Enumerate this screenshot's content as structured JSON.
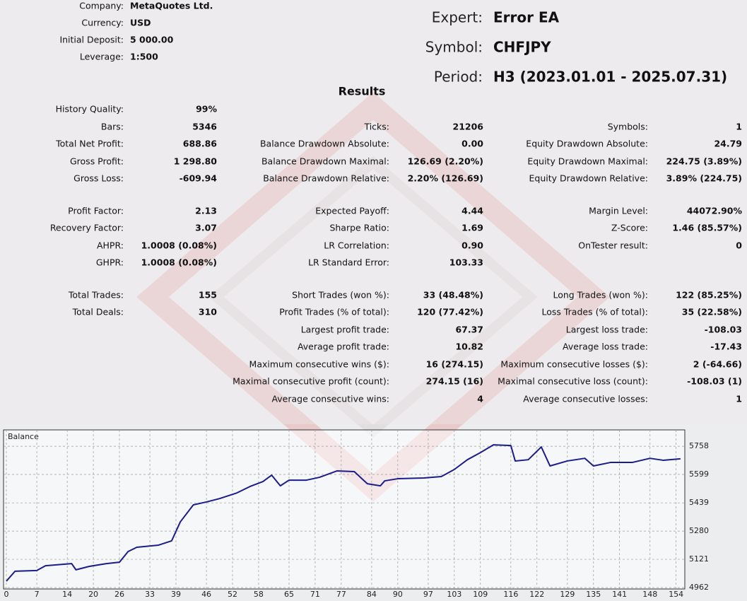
{
  "header": {
    "info": [
      {
        "label": "Company:",
        "value": "MetaQuotes Ltd."
      },
      {
        "label": "Currency:",
        "value": "USD"
      },
      {
        "label": "Initial Deposit:",
        "value": "5 000.00"
      },
      {
        "label": "Leverage:",
        "value": "1:500"
      }
    ],
    "expert": [
      {
        "label": "Expert:",
        "value": "Error EA"
      },
      {
        "label": "Symbol:",
        "value": "CHFJPY"
      },
      {
        "label": "Period:",
        "value": "H3 (2023.01.01 - 2025.07.31)"
      }
    ]
  },
  "results": {
    "title": "Results",
    "columns": [
      [
        {
          "label": "History Quality:",
          "value": "99%"
        },
        {
          "label": "Bars:",
          "value": "5346"
        },
        {
          "label": "Total Net Profit:",
          "value": "688.86"
        },
        {
          "label": "Gross Profit:",
          "value": "1 298.80"
        },
        {
          "label": "Gross Loss:",
          "value": "-609.94"
        },
        {
          "label": "Profit Factor:",
          "value": "2.13"
        },
        {
          "label": "Recovery Factor:",
          "value": "3.07"
        },
        {
          "label": "AHPR:",
          "value": "1.0008 (0.08%)"
        },
        {
          "label": "GHPR:",
          "value": "1.0008 (0.08%)"
        },
        {
          "label": "Total Trades:",
          "value": "155"
        },
        {
          "label": "Total Deals:",
          "value": "310"
        }
      ],
      [
        null,
        {
          "label": "Ticks:",
          "value": "21206"
        },
        {
          "label": "Balance Drawdown Absolute:",
          "value": "0.00"
        },
        {
          "label": "Balance Drawdown Maximal:",
          "value": "126.69 (2.20%)"
        },
        {
          "label": "Balance Drawdown Relative:",
          "value": "2.20% (126.69)"
        },
        {
          "label": "Expected Payoff:",
          "value": "4.44"
        },
        {
          "label": "Sharpe Ratio:",
          "value": "1.69"
        },
        {
          "label": "LR Correlation:",
          "value": "0.90"
        },
        {
          "label": "LR Standard Error:",
          "value": "103.33"
        },
        {
          "label": "Short Trades (won %):",
          "value": "33 (48.48%)"
        },
        {
          "label": "Profit Trades (% of total):",
          "value": "120 (77.42%)"
        },
        {
          "label": "Largest profit trade:",
          "value": "67.37"
        },
        {
          "label": "Average profit trade:",
          "value": "10.82"
        },
        {
          "label": "Maximum consecutive wins ($):",
          "value": "16 (274.15)"
        },
        {
          "label": "Maximal consecutive profit (count):",
          "value": "274.15 (16)"
        },
        {
          "label": "Average consecutive wins:",
          "value": "4"
        }
      ],
      [
        null,
        {
          "label": "Symbols:",
          "value": "1"
        },
        {
          "label": "Equity Drawdown Absolute:",
          "value": "24.79"
        },
        {
          "label": "Equity Drawdown Maximal:",
          "value": "224.75 (3.89%)"
        },
        {
          "label": "Equity Drawdown Relative:",
          "value": "3.89% (224.75)"
        },
        {
          "label": "Margin Level:",
          "value": "44072.90%"
        },
        {
          "label": "Z-Score:",
          "value": "1.46 (85.57%)"
        },
        {
          "label": "OnTester result:",
          "value": "0"
        },
        null,
        {
          "label": "Long Trades (won %):",
          "value": "122 (85.25%)"
        },
        {
          "label": "Loss Trades (% of total):",
          "value": "35 (22.58%)"
        },
        {
          "label": "Largest loss trade:",
          "value": "-108.03"
        },
        {
          "label": "Average loss trade:",
          "value": "-17.43"
        },
        {
          "label": "Maximum consecutive losses ($):",
          "value": "2 (-64.66)"
        },
        {
          "label": "Maximal consecutive loss (count):",
          "value": "-108.03 (1)"
        },
        {
          "label": "Average consecutive losses:",
          "value": "1"
        }
      ]
    ]
  },
  "chart_data": {
    "type": "line",
    "title": "Balance",
    "x": [
      0,
      2,
      7,
      9,
      13,
      15,
      16,
      19,
      23,
      26,
      28,
      30,
      35,
      38,
      40,
      43,
      46,
      49,
      53,
      56,
      59,
      61,
      63,
      65,
      69,
      72,
      76,
      80,
      83,
      86,
      87,
      90,
      96,
      100,
      103,
      106,
      109,
      112,
      116,
      117,
      120,
      123,
      125,
      129,
      133,
      135,
      139,
      144,
      148,
      151,
      155
    ],
    "series": [
      {
        "color": "#1c1c8a",
        "values": [
          4998,
          5054,
          5058,
          5085,
          5093,
          5097,
          5062,
          5081,
          5097,
          5105,
          5165,
          5189,
          5201,
          5225,
          5332,
          5428,
          5444,
          5463,
          5495,
          5531,
          5559,
          5595,
          5535,
          5567,
          5567,
          5583,
          5619,
          5615,
          5547,
          5535,
          5563,
          5575,
          5579,
          5587,
          5627,
          5682,
          5722,
          5766,
          5762,
          5675,
          5682,
          5754,
          5647,
          5675,
          5690,
          5647,
          5667,
          5667,
          5690,
          5679,
          5687
        ]
      }
    ],
    "xlim": [
      -0.65,
      156
    ],
    "ylim": [
      4954,
      5850
    ],
    "xticks": [
      0,
      7,
      14,
      20,
      26,
      33,
      39,
      46,
      52,
      58,
      65,
      71,
      77,
      84,
      90,
      97,
      103,
      109,
      116,
      122,
      129,
      135,
      141,
      148,
      154
    ],
    "yticks": [
      4962,
      5121,
      5280,
      5439,
      5599,
      5758
    ],
    "grid": true
  }
}
